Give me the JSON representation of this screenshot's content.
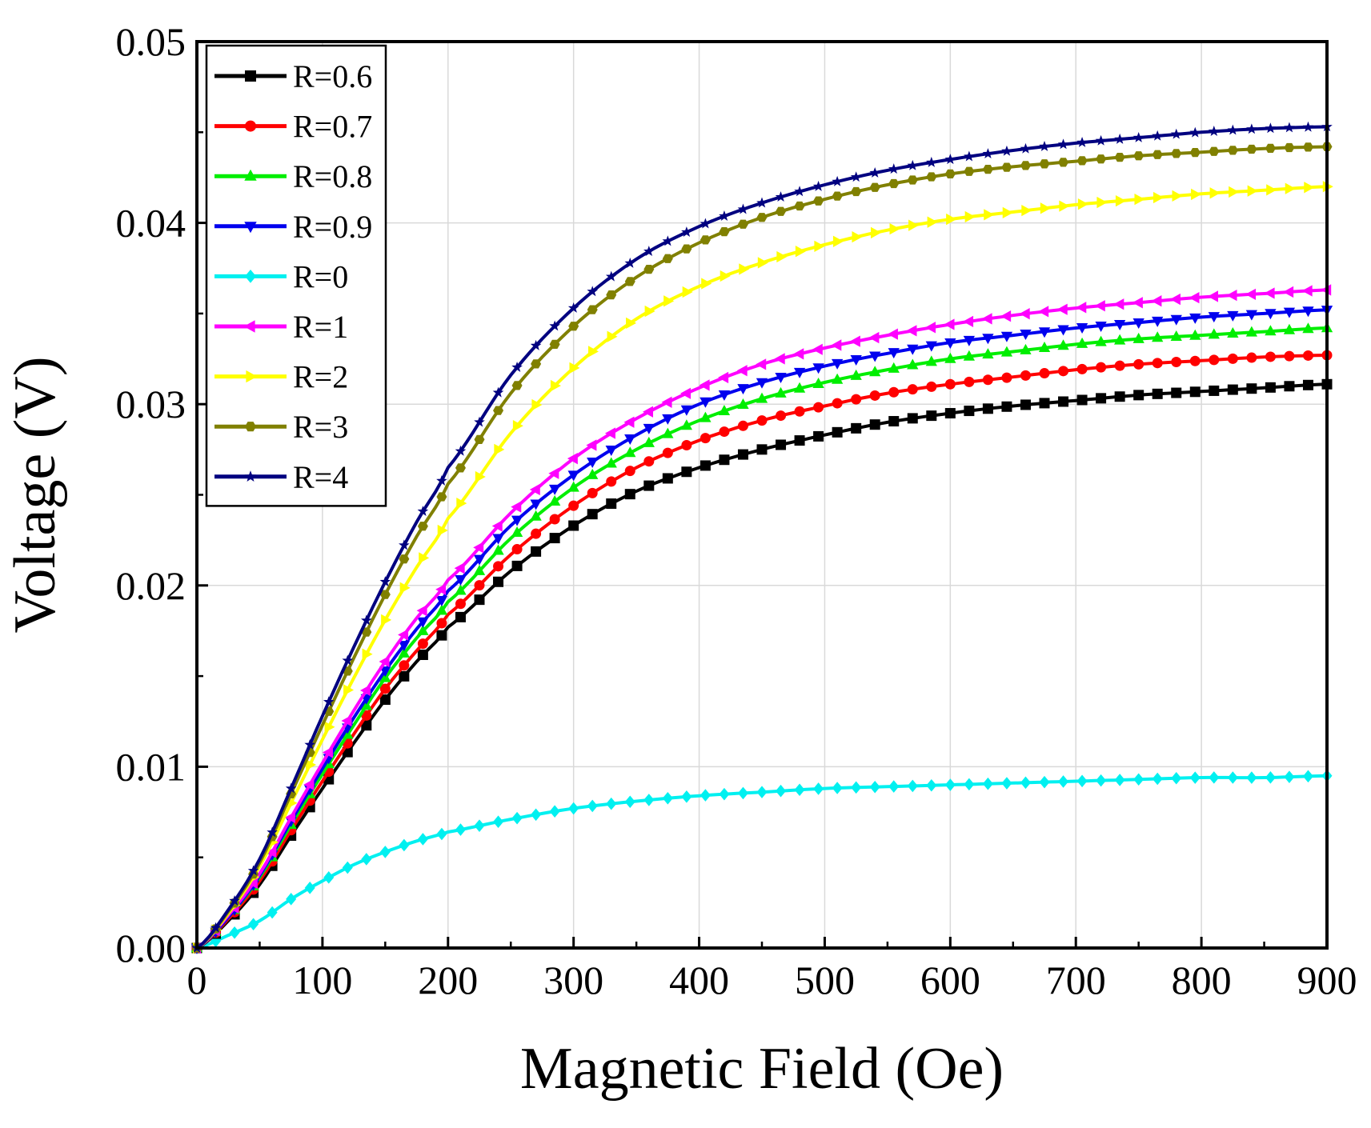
{
  "chart_data": {
    "type": "line",
    "xlabel": "Magnetic Field (Oe)",
    "ylabel": "Voltage (V)",
    "xlim": [
      0,
      900
    ],
    "ylim": [
      0,
      0.05
    ],
    "xticks": [
      "0",
      "100",
      "200",
      "300",
      "400",
      "500",
      "600",
      "700",
      "800",
      "900"
    ],
    "yticks": [
      "0.00",
      "0.01",
      "0.02",
      "0.03",
      "0.04",
      "0.05"
    ],
    "grid": true,
    "legend_position": "top-left",
    "x": [
      0,
      25,
      50,
      75,
      100,
      125,
      150,
      175,
      200,
      250,
      300,
      350,
      400,
      450,
      500,
      550,
      600,
      650,
      700,
      750,
      800,
      850,
      900
    ],
    "series": [
      {
        "name": "R=0.6",
        "color": "#000000",
        "marker": "square",
        "values": [
          0,
          0.0015,
          0.0035,
          0.0062,
          0.0088,
          0.0113,
          0.0137,
          0.0158,
          0.0177,
          0.0208,
          0.0233,
          0.0252,
          0.0265,
          0.0275,
          0.0283,
          0.029,
          0.0295,
          0.0299,
          0.0302,
          0.0305,
          0.0307,
          0.0309,
          0.0311
        ]
      },
      {
        "name": "R=0.7",
        "color": "#ff0000",
        "marker": "circle",
        "values": [
          0,
          0.0016,
          0.0037,
          0.0065,
          0.0092,
          0.0118,
          0.0143,
          0.0164,
          0.0184,
          0.0217,
          0.0244,
          0.0265,
          0.028,
          0.0291,
          0.0299,
          0.0306,
          0.0311,
          0.0315,
          0.0319,
          0.0322,
          0.0324,
          0.0326,
          0.0327
        ]
      },
      {
        "name": "R=0.8",
        "color": "#00ee00",
        "marker": "triangle-up",
        "values": [
          0,
          0.0017,
          0.0039,
          0.0068,
          0.0096,
          0.0123,
          0.0149,
          0.0171,
          0.0191,
          0.0226,
          0.0254,
          0.0275,
          0.0291,
          0.0303,
          0.0312,
          0.0319,
          0.0325,
          0.0329,
          0.0333,
          0.0336,
          0.0338,
          0.034,
          0.0342
        ]
      },
      {
        "name": "R=0.9",
        "color": "#0000ee",
        "marker": "triangle-down",
        "values": [
          0,
          0.0017,
          0.004,
          0.007,
          0.0099,
          0.0127,
          0.0153,
          0.0176,
          0.0197,
          0.0233,
          0.0261,
          0.0283,
          0.03,
          0.0312,
          0.0321,
          0.0328,
          0.0334,
          0.0338,
          0.0342,
          0.0345,
          0.0348,
          0.035,
          0.0352
        ]
      },
      {
        "name": "R=0",
        "color": "#00f0f0",
        "marker": "diamond",
        "values": [
          0,
          0.0007,
          0.0015,
          0.0027,
          0.0037,
          0.0046,
          0.0053,
          0.0059,
          0.0064,
          0.0071,
          0.0077,
          0.0081,
          0.0084,
          0.0086,
          0.0088,
          0.0089,
          0.009,
          0.0091,
          0.0092,
          0.0093,
          0.0094,
          0.0094,
          0.0095
        ]
      },
      {
        "name": "R=1",
        "color": "#ff00ff",
        "marker": "triangle-left",
        "values": [
          0,
          0.0018,
          0.0041,
          0.0072,
          0.0102,
          0.0131,
          0.0158,
          0.0182,
          0.0203,
          0.024,
          0.027,
          0.0292,
          0.0309,
          0.0322,
          0.0331,
          0.0338,
          0.0344,
          0.0349,
          0.0353,
          0.0356,
          0.0359,
          0.0361,
          0.0363
        ]
      },
      {
        "name": "R=2",
        "color": "#ffff00",
        "marker": "triangle-right",
        "values": [
          0,
          0.0019,
          0.0045,
          0.008,
          0.0115,
          0.0149,
          0.0181,
          0.021,
          0.0237,
          0.0284,
          0.032,
          0.0347,
          0.0365,
          0.0378,
          0.0388,
          0.0396,
          0.0402,
          0.0406,
          0.041,
          0.0413,
          0.0416,
          0.0418,
          0.042
        ]
      },
      {
        "name": "R=3",
        "color": "#808000",
        "marker": "hexagon",
        "values": [
          0,
          0.002,
          0.0047,
          0.0085,
          0.0123,
          0.016,
          0.0195,
          0.0227,
          0.0256,
          0.0306,
          0.0343,
          0.037,
          0.0389,
          0.0403,
          0.0413,
          0.0421,
          0.0427,
          0.0431,
          0.0434,
          0.0437,
          0.0439,
          0.0441,
          0.0442
        ]
      },
      {
        "name": "R=4",
        "color": "#000080",
        "marker": "star",
        "values": [
          0,
          0.0021,
          0.0049,
          0.0088,
          0.0128,
          0.0166,
          0.0202,
          0.0235,
          0.0265,
          0.0316,
          0.0353,
          0.038,
          0.0398,
          0.0411,
          0.0421,
          0.0429,
          0.0435,
          0.044,
          0.0444,
          0.0447,
          0.045,
          0.0452,
          0.0453
        ]
      }
    ]
  }
}
